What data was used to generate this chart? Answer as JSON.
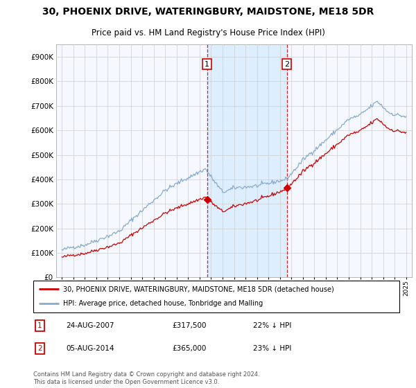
{
  "title": "30, PHOENIX DRIVE, WATERINGBURY, MAIDSTONE, ME18 5DR",
  "subtitle": "Price paid vs. HM Land Registry's House Price Index (HPI)",
  "hpi_label": "HPI: Average price, detached house, Tonbridge and Malling",
  "property_label": "30, PHOENIX DRIVE, WATERINGBURY, MAIDSTONE, ME18 5DR (detached house)",
  "sale1_date": "24-AUG-2007",
  "sale1_price": "£317,500",
  "sale1_hpi": "22% ↓ HPI",
  "sale2_date": "05-AUG-2014",
  "sale2_price": "£365,000",
  "sale2_hpi": "23% ↓ HPI",
  "footer": "Contains HM Land Registry data © Crown copyright and database right 2024.\nThis data is licensed under the Open Government Licence v3.0.",
  "property_color": "#cc0000",
  "hpi_color": "#88aacc",
  "shade_color": "#ddeeff",
  "sale1_vline_x": 2007.65,
  "sale2_vline_x": 2014.6,
  "ylim": [
    0,
    950000
  ],
  "yticks": [
    0,
    100000,
    200000,
    300000,
    400000,
    500000,
    600000,
    700000,
    800000,
    900000
  ],
  "xlim": [
    1994.5,
    2025.5
  ],
  "background_color": "#ffffff",
  "plot_bg_color": "#f5f8ff",
  "grid_color": "#cccccc",
  "title_fontsize": 10,
  "subtitle_fontsize": 8.5
}
